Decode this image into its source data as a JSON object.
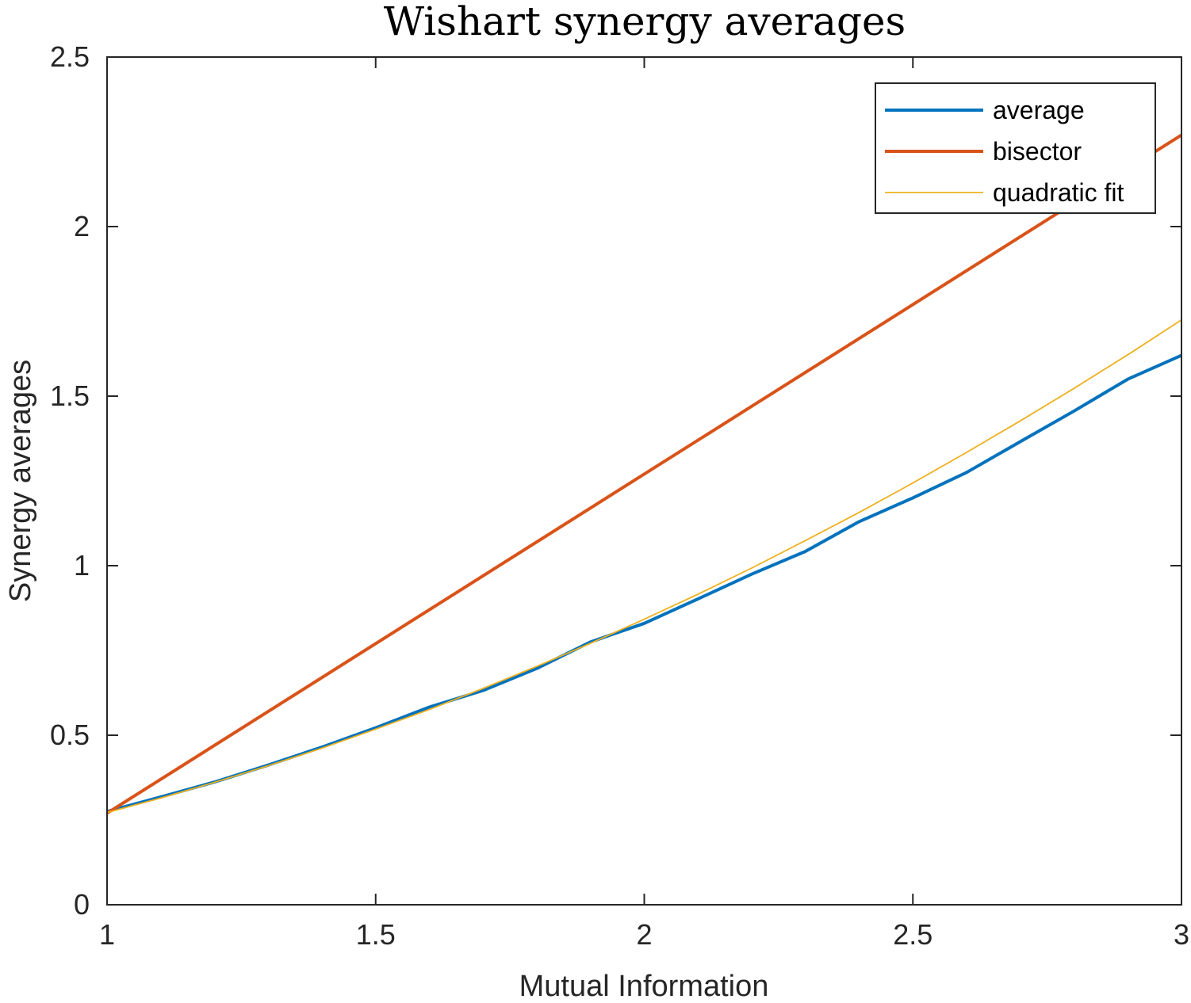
{
  "chart_data": {
    "type": "line",
    "title": "Wishart synergy averages",
    "xlabel": "Mutual Information",
    "ylabel": "Synergy averages",
    "xlim": [
      1,
      3
    ],
    "ylim": [
      0,
      2.5
    ],
    "xticks": [
      1,
      1.5,
      2,
      2.5,
      3
    ],
    "xtick_labels": [
      "1",
      "1.5",
      "2",
      "2.5",
      "3"
    ],
    "yticks": [
      0,
      0.5,
      1,
      1.5,
      2,
      2.5
    ],
    "ytick_labels": [
      "0",
      "0.5",
      "1",
      "1.5",
      "2",
      "2.5"
    ],
    "grid": false,
    "legend_position": "top-right",
    "series": [
      {
        "name": "average",
        "color": "#0072BD",
        "x": [
          1.0,
          1.1,
          1.2,
          1.3,
          1.4,
          1.5,
          1.6,
          1.7,
          1.8,
          1.9,
          2.0,
          2.1,
          2.2,
          2.3,
          2.4,
          2.5,
          2.6,
          2.7,
          2.8,
          2.9,
          3.0
        ],
        "y": [
          0.275,
          0.318,
          0.362,
          0.412,
          0.465,
          0.522,
          0.583,
          0.632,
          0.697,
          0.775,
          0.83,
          0.902,
          0.975,
          1.042,
          1.13,
          1.2,
          1.275,
          1.366,
          1.456,
          1.55,
          1.62
        ]
      },
      {
        "name": "bisector",
        "color": "#D95319",
        "x": [
          1.0,
          3.0
        ],
        "y": [
          0.27,
          2.27
        ]
      },
      {
        "name": "quadratic fit",
        "color": "#EDB120",
        "x": [
          1.0,
          1.1,
          1.2,
          1.3,
          1.4,
          1.5,
          1.6,
          1.7,
          1.8,
          1.9,
          2.0,
          2.1,
          2.2,
          2.3,
          2.4,
          2.5,
          2.6,
          2.7,
          2.8,
          2.9,
          3.0
        ],
        "y": [
          0.272,
          0.315,
          0.361,
          0.41,
          0.462,
          0.518,
          0.576,
          0.638,
          0.703,
          0.771,
          0.842,
          0.916,
          0.993,
          1.074,
          1.157,
          1.244,
          1.334,
          1.427,
          1.523,
          1.622,
          1.725
        ]
      }
    ]
  }
}
